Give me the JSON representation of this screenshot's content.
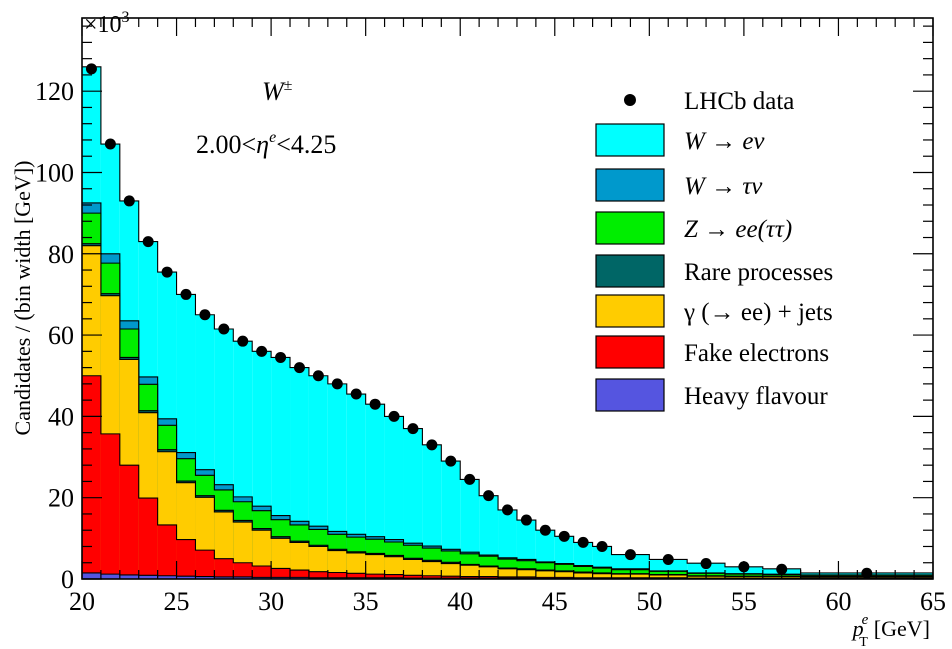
{
  "chart_data": {
    "type": "bar",
    "stacked": true,
    "histogram": true,
    "xlabel": "p",
    "xlabel_sup": "e",
    "xlabel_sub": "T",
    "xlabel_unit": "[GeV]",
    "ylabel": "Candidates / (bin width [GeV])",
    "y_multiplier": "×10",
    "y_multiplier_exp": "3",
    "annotation_line1": "W",
    "annotation_line1_sup": "±",
    "annotation_line2_pre": "2.00<",
    "annotation_line2_var": "η",
    "annotation_line2_sup": "e",
    "annotation_line2_post": "<4.25",
    "xlim": [
      20,
      65
    ],
    "ylim": [
      0,
      138
    ],
    "xticks": [
      "20",
      "25",
      "30",
      "35",
      "40",
      "45",
      "50",
      "55",
      "60",
      "65"
    ],
    "yticks": [
      "0",
      "20",
      "40",
      "60",
      "80",
      "100",
      "120"
    ],
    "bin_edges": [
      20,
      21,
      22,
      23,
      24,
      25,
      26,
      27,
      28,
      29,
      30,
      31,
      32,
      33,
      34,
      35,
      36,
      37,
      38,
      39,
      40,
      41,
      42,
      43,
      44,
      45,
      46,
      47,
      48,
      50,
      52,
      54,
      56,
      58,
      65
    ],
    "legend_data_label": "LHCb data",
    "data_x": [
      20.5,
      21.5,
      22.5,
      23.5,
      24.5,
      25.5,
      26.5,
      27.5,
      28.5,
      29.5,
      30.5,
      31.5,
      32.5,
      33.5,
      34.5,
      35.5,
      36.5,
      37.5,
      38.5,
      39.5,
      40.5,
      41.5,
      42.5,
      43.5,
      44.5,
      45.5,
      46.5,
      47.5,
      49.0,
      51.0,
      53.0,
      55.0,
      57.0,
      61.5
    ],
    "data_y": [
      125.5,
      107,
      93,
      83,
      75.5,
      70,
      65,
      61.5,
      58.5,
      56,
      54.5,
      52,
      50,
      48,
      45.5,
      43,
      40,
      37,
      33,
      29,
      24.5,
      20.5,
      17,
      14.5,
      12,
      10.5,
      9,
      8,
      6,
      4.8,
      3.8,
      3,
      2.4,
      1.4
    ],
    "series": [
      {
        "name": "Heavy flavour",
        "color": "#5555e0",
        "values": [
          1.5,
          1.2,
          1,
          0.9,
          0.8,
          0.7,
          0.6,
          0.5,
          0.5,
          0.4,
          0.4,
          0.4,
          0.3,
          0.3,
          0.3,
          0.3,
          0.3,
          0.2,
          0.2,
          0.2,
          0.2,
          0.2,
          0.2,
          0.2,
          0.1,
          0.1,
          0.1,
          0.1,
          0.1,
          0.1,
          0.1,
          0.1,
          0.1,
          0.1
        ]
      },
      {
        "name": "Fake electrons",
        "color": "#ff0000",
        "values": [
          48.5,
          34.5,
          27,
          19,
          12.5,
          9,
          6.5,
          4.5,
          3.5,
          2.8,
          2.2,
          1.8,
          1.5,
          1.3,
          1.1,
          0.9,
          0.8,
          0.7,
          0.6,
          0.5,
          0.4,
          0.4,
          0.3,
          0.3,
          0.3,
          0.3,
          0.2,
          0.2,
          0.2,
          0.2,
          0.1,
          0.1,
          0.1,
          0.1
        ]
      },
      {
        "name": "γ (→ ee) + jets",
        "color": "#ffcc00",
        "values": [
          32,
          34,
          26,
          21,
          18,
          14,
          13,
          11.5,
          10,
          8.8,
          7.4,
          6.8,
          6.2,
          5.4,
          5,
          4.8,
          4.4,
          3.9,
          3.5,
          3.1,
          2.8,
          2.4,
          2,
          1.8,
          1.6,
          1.4,
          1.2,
          1,
          0.9,
          0.7,
          0.5,
          0.4,
          0.4,
          0.3
        ]
      },
      {
        "name": "Rare processes",
        "color": "#006666",
        "values": [
          0.5,
          0.5,
          0.5,
          0.5,
          0.5,
          0.4,
          0.4,
          0.4,
          0.4,
          0.4,
          0.4,
          0.3,
          0.3,
          0.3,
          0.3,
          0.3,
          0.3,
          0.3,
          0.3,
          0.3,
          0.2,
          0.2,
          0.2,
          0.2,
          0.2,
          0.2,
          0.2,
          0.2,
          0.1,
          0.1,
          0.1,
          0.1,
          0.1,
          0.1
        ]
      },
      {
        "name": "Z → ee(ττ)",
        "color": "#00ee00",
        "values": [
          7.5,
          7.5,
          7,
          6.5,
          6,
          5.5,
          5,
          5,
          4.6,
          4.4,
          4.2,
          4,
          3.9,
          3.7,
          3.6,
          3.5,
          3.3,
          3.2,
          3,
          2.8,
          2.6,
          2.4,
          2.2,
          2,
          1.8,
          1.6,
          1.4,
          1.2,
          1,
          0.8,
          0.6,
          0.5,
          0.4,
          0.3
        ]
      },
      {
        "name": "W → τν",
        "color": "#0099cc",
        "values": [
          2.5,
          2.3,
          2,
          1.8,
          1.6,
          1.5,
          1.4,
          1.3,
          1.2,
          1.1,
          1,
          0.9,
          0.8,
          0.7,
          0.7,
          0.6,
          0.6,
          0.5,
          0.5,
          0.4,
          0.4,
          0.3,
          0.3,
          0.3,
          0.2,
          0.2,
          0.2,
          0.2,
          0.2,
          0.1,
          0.1,
          0.1,
          0.1,
          0.1
        ]
      },
      {
        "name": "W → eν",
        "color": "#00ffff",
        "values": [
          33.5,
          27,
          29.5,
          33.3,
          36.1,
          38.9,
          38.1,
          38.3,
          38.3,
          38.1,
          38.9,
          37.8,
          37,
          36.3,
          34.5,
          32.6,
          30.3,
          28.2,
          24.9,
          21.7,
          17.9,
          14.6,
          11.8,
          9.7,
          7.8,
          6.7,
          5.7,
          5.1,
          3.5,
          2.8,
          2.4,
          1.7,
          1.3,
          0.5
        ]
      }
    ],
    "legend_order": [
      "LHCb data",
      "W → eν",
      "W → τν",
      "Z → ee(ττ)",
      "Rare processes",
      "γ (→ ee) + jets",
      "Fake electrons",
      "Heavy flavour"
    ]
  }
}
